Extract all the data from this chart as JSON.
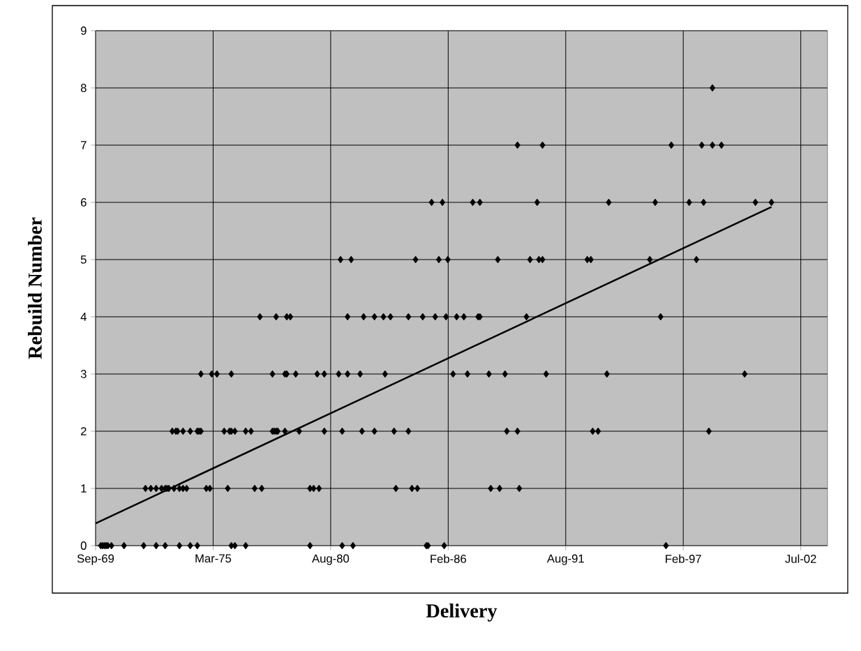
{
  "chart_data": {
    "type": "scatter",
    "xlabel": "Delivery",
    "ylabel": "Rebuild Number",
    "xlim": [
      "1969-09-18",
      "2003-10-25"
    ],
    "xticks": [
      {
        "value": "1969-09-18",
        "label": "Sep-69"
      },
      {
        "value": "1975-03-11",
        "label": "Mar-75"
      },
      {
        "value": "1980-08-31",
        "label": "Aug-80"
      },
      {
        "value": "1986-02-21",
        "label": "Feb-86"
      },
      {
        "value": "1991-08-14",
        "label": "Aug-91"
      },
      {
        "value": "1997-02-03",
        "label": "Feb-97"
      },
      {
        "value": "2002-07-27",
        "label": "Jul-02"
      }
    ],
    "ylim": [
      0,
      9
    ],
    "yticks": [
      0,
      1,
      2,
      3,
      4,
      5,
      6,
      7,
      8,
      9
    ],
    "grid": true,
    "marker": "diamond",
    "series": [
      {
        "color": "#000000",
        "x": [
          "1969-12",
          "1970-01",
          "1970-02",
          "1970-03",
          "1970-04",
          "1970-06",
          "1971-01",
          "1971-12",
          "1972-07",
          "1972-12",
          "1973-08",
          "1974-02",
          "1974-06",
          "1976-01",
          "1976-03",
          "1976-09",
          "1979-09",
          "1981-03",
          "1981-09",
          "1985-02",
          "1985-03",
          "1985-12",
          "1996-04",
          "1972-01",
          "1972-04",
          "1972-07",
          "1972-10",
          "1972-12",
          "1973-01",
          "1973-02",
          "1973-05",
          "1973-08",
          "1973-10",
          "1973-12",
          "1974-11",
          "1975-01",
          "1975-11",
          "1977-02",
          "1977-06",
          "1979-09",
          "1979-11",
          "1980-02",
          "1983-09",
          "1984-06",
          "1984-09",
          "1988-02",
          "1988-07",
          "1989-06",
          "1973-04",
          "1973-06",
          "1973-07",
          "1973-10",
          "1974-02",
          "1974-06",
          "1974-07",
          "1974-08",
          "1975-09",
          "1975-12",
          "1976-01",
          "1976-03",
          "1976-09",
          "1976-12",
          "1977-12",
          "1978-01",
          "1978-02",
          "1978-03",
          "1978-07",
          "1979-03",
          "1980-05",
          "1981-03",
          "1982-02",
          "1982-09",
          "1983-08",
          "1984-04",
          "1988-11",
          "1989-05",
          "1992-11",
          "1993-02",
          "1998-04",
          "1974-08",
          "1975-02",
          "1975-05",
          "1976-01",
          "1977-12",
          "1978-07",
          "1978-08",
          "1979-01",
          "1980-01",
          "1980-05",
          "1981-01",
          "1981-06",
          "1982-01",
          "1983-03",
          "1986-05",
          "1987-01",
          "1988-01",
          "1988-10",
          "1990-09",
          "1993-07",
          "1999-12",
          "1977-05",
          "1978-02",
          "1978-08",
          "1978-10",
          "1981-06",
          "1982-03",
          "1982-09",
          "1983-02",
          "1983-06",
          "1984-04",
          "1984-12",
          "1985-07",
          "1986-01",
          "1986-07",
          "1986-11",
          "1987-07",
          "1987-08",
          "1989-10",
          "1996-01",
          "1981-02",
          "1981-08",
          "1984-08",
          "1985-09",
          "1986-02",
          "1988-06",
          "1989-12",
          "1990-05",
          "1990-07",
          "1992-08",
          "1992-10",
          "1995-07",
          "1997-09",
          "1985-05",
          "1985-11",
          "1987-04",
          "1987-08",
          "1990-04",
          "1993-08",
          "1995-10",
          "1997-05",
          "1998-01",
          "2000-06",
          "2001-03",
          "1989-05",
          "1990-07",
          "1996-07",
          "1997-12",
          "1998-06",
          "1998-11",
          "1998-06"
        ],
        "values": [
          0,
          0,
          0,
          0,
          0,
          0,
          0,
          0,
          0,
          0,
          0,
          0,
          0,
          0,
          0,
          0,
          0,
          0,
          0,
          0,
          0,
          0,
          0,
          1,
          1,
          1,
          1,
          1,
          1,
          1,
          1,
          1,
          1,
          1,
          1,
          1,
          1,
          1,
          1,
          1,
          1,
          1,
          1,
          1,
          1,
          1,
          1,
          1,
          2,
          2,
          2,
          2,
          2,
          2,
          2,
          2,
          2,
          2,
          2,
          2,
          2,
          2,
          2,
          2,
          2,
          2,
          2,
          2,
          2,
          2,
          2,
          2,
          2,
          2,
          2,
          2,
          2,
          2,
          2,
          3,
          3,
          3,
          3,
          3,
          3,
          3,
          3,
          3,
          3,
          3,
          3,
          3,
          3,
          3,
          3,
          3,
          3,
          3,
          3,
          3,
          4,
          4,
          4,
          4,
          4,
          4,
          4,
          4,
          4,
          4,
          4,
          4,
          4,
          4,
          4,
          4,
          4,
          4,
          4,
          5,
          5,
          5,
          5,
          5,
          5,
          5,
          5,
          5,
          5,
          5,
          5,
          5,
          6,
          6,
          6,
          6,
          6,
          6,
          6,
          6,
          6,
          6,
          6,
          7,
          7,
          7,
          7,
          7,
          7,
          8
        ]
      },
      {
        "type": "line",
        "color": "#000000",
        "marker": "none",
        "x": [
          "1969-09-18",
          "2001-03"
        ],
        "values": [
          0.39,
          5.92
        ]
      }
    ]
  }
}
